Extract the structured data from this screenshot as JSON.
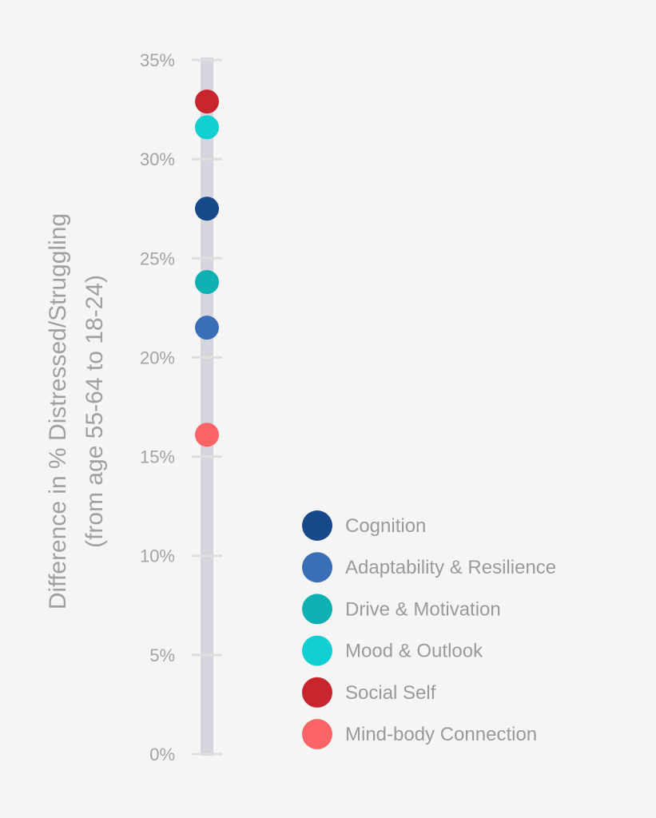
{
  "chart_data": {
    "type": "scatter",
    "ylabel": "Difference in % Distressed/Struggling",
    "ylabel_line2": "(from age 55-64 to 18-24)",
    "ylim": [
      0,
      35
    ],
    "yticks": [
      "0%",
      "5%",
      "10%",
      "15%",
      "20%",
      "25%",
      "30%",
      "35%"
    ],
    "ytick_values": [
      0,
      5,
      10,
      15,
      20,
      25,
      30,
      35
    ],
    "grid": false,
    "legend_position": "bottom-right",
    "series": [
      {
        "name": "Cognition",
        "value": 27.5,
        "color": "#17498a"
      },
      {
        "name": "Adaptability & Resilience",
        "value": 21.5,
        "color": "#3a6fb7"
      },
      {
        "name": "Drive & Motivation",
        "value": 23.8,
        "color": "#0eb0b2"
      },
      {
        "name": "Mood & Outlook",
        "value": 31.6,
        "color": "#12cfd3"
      },
      {
        "name": "Social Self",
        "value": 32.9,
        "color": "#c9252f"
      },
      {
        "name": "Mind-body Connection",
        "value": 16.1,
        "color": "#fb6467"
      }
    ]
  }
}
